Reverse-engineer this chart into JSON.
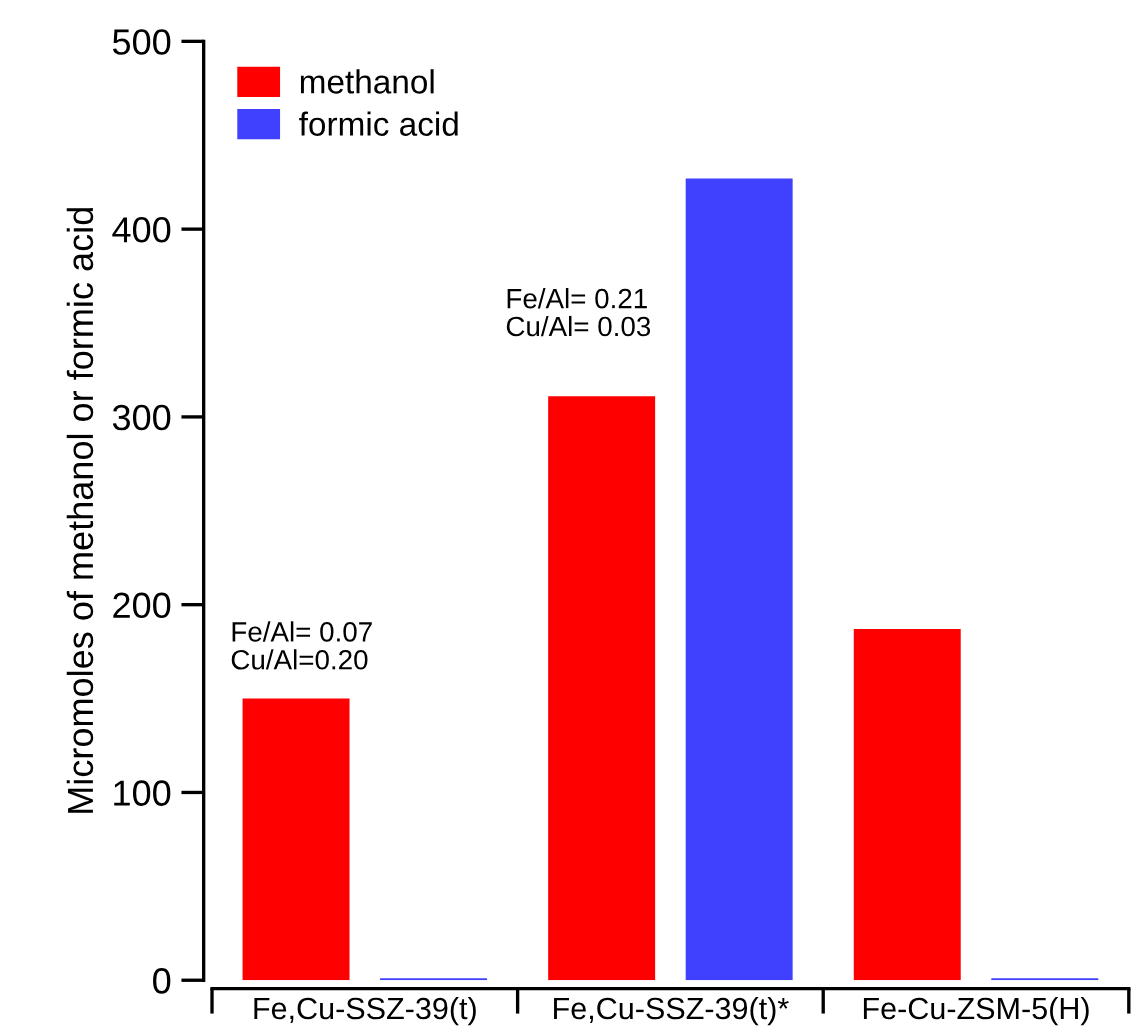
{
  "chart_data": {
    "type": "bar",
    "ylabel": "Micromoles of methanol or formic acid",
    "categories": [
      "Fe,Cu-SSZ-39(t)",
      "Fe,Cu-SSZ-39(t)*",
      "Fe-Cu-ZSM-5(H)"
    ],
    "series": [
      {
        "name": "methanol",
        "color": "#ff0000",
        "values": [
          150,
          311,
          187
        ]
      },
      {
        "name": "formic acid",
        "color": "#4040ff",
        "values": [
          1,
          427,
          1
        ]
      }
    ],
    "ylim": [
      0,
      500
    ],
    "yticks": [
      0,
      100,
      200,
      300,
      400,
      500
    ],
    "grid": false,
    "legend": "top left",
    "annotations": [
      "Fe/Al= 0.07\nCu/Al=0.20",
      "Fe/Al= 0.21\nCu/Al= 0.03"
    ]
  }
}
